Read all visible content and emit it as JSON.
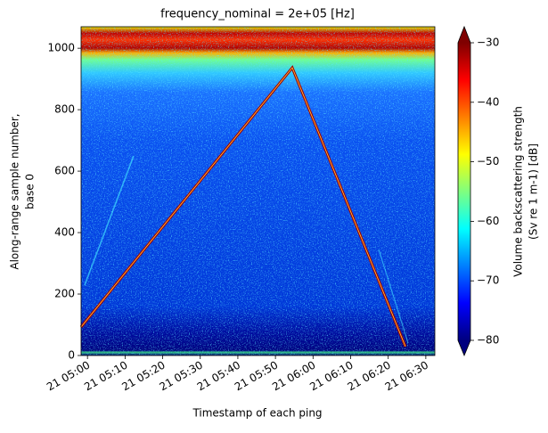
{
  "chart_data": {
    "type": "heatmap",
    "title": "frequency_nominal = 2e+05 [Hz]",
    "xlabel": "Timestamp of each ping",
    "ylabel": [
      "Along-range sample number,",
      "base 0"
    ],
    "xlim": [
      298.3,
      392.4
    ],
    "xticks": [
      {
        "value": 300,
        "label": "21 05:00"
      },
      {
        "value": 310,
        "label": "21 05:10"
      },
      {
        "value": 320,
        "label": "21 05:20"
      },
      {
        "value": 330,
        "label": "21 05:30"
      },
      {
        "value": 340,
        "label": "21 05:40"
      },
      {
        "value": 350,
        "label": "21 05:50"
      },
      {
        "value": 360,
        "label": "21 06:00"
      },
      {
        "value": 370,
        "label": "21 06:10"
      },
      {
        "value": 380,
        "label": "21 06:20"
      },
      {
        "value": 390,
        "label": "21 06:30"
      }
    ],
    "ylim": [
      0,
      1070
    ],
    "yticks": [
      0,
      200,
      400,
      600,
      800,
      1000
    ],
    "colorbar": {
      "label": [
        "Volume backscattering strength",
        "(Sv re 1 m-1) [dB]"
      ],
      "lim": [
        -80,
        -30
      ],
      "ticks": [
        {
          "value": -80,
          "label": "−80"
        },
        {
          "value": -70,
          "label": "−70"
        },
        {
          "value": -60,
          "label": "−60"
        },
        {
          "value": -50,
          "label": "−50"
        },
        {
          "value": -40,
          "label": "−40"
        },
        {
          "value": -30,
          "label": "−30"
        }
      ],
      "colormap": [
        "#00007f",
        "#0000ff",
        "#007fff",
        "#00ffff",
        "#7fff7f",
        "#ffff00",
        "#ff7f00",
        "#ff0000",
        "#7f0000"
      ]
    }
  }
}
